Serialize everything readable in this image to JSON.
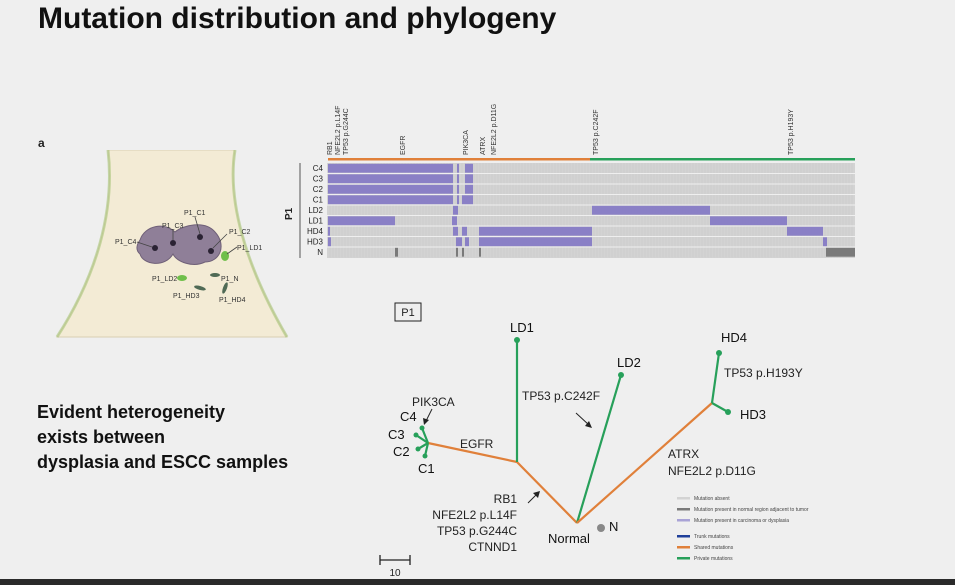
{
  "title": "Mutation distribution and phylogeny",
  "panel_label": "a",
  "bullet_lines": [
    "Evident heterogeneity",
    "exists between",
    "dysplasia and ESCC samples"
  ],
  "illustration": {
    "sample_labels": [
      "P1_C1",
      "P1_C3",
      "P1_C2",
      "P1_C4",
      "P1_LD1",
      "P1_N",
      "P1_LD2",
      "P1_HD3",
      "P1_HD4"
    ]
  },
  "heatmap": {
    "patient_label": "P1",
    "rows": [
      "C4",
      "C3",
      "C2",
      "C1",
      "LD2",
      "LD1",
      "HD4",
      "HD3",
      "N"
    ],
    "gene_labels": [
      "RB1",
      "NFE2L2 p.L14F",
      "TP53 p.G244C",
      "EGFR",
      "PIK3CA",
      "ATRX",
      "NFE2L2 p.D11G",
      "TP53 p.C242F",
      "TP53 p.H193Y"
    ],
    "colors": {
      "absent": "#d3d3d3",
      "present": "#8a80c6",
      "normal": "#7a7a7a",
      "shared": "#e0803a",
      "private": "#27a05a"
    }
  },
  "tree": {
    "box_label": "P1",
    "nodes": {
      "ld1": "LD1",
      "ld2": "LD2",
      "hd4": "HD4",
      "hd3": "HD3",
      "c1": "C1",
      "c2": "C2",
      "c3": "C3",
      "c4": "C4",
      "normal": "Normal",
      "n": "N"
    },
    "annotations": {
      "pik3ca": "PIK3CA",
      "egfr": "EGFR",
      "tp53_c242f": "TP53 p.C242F",
      "tp53_h193y": "TP53 p.H193Y",
      "atrx": "ATRX",
      "nfe2l2_d11g": "NFE2L2 p.D11G",
      "trunk_lines": [
        "RB1",
        "NFE2L2 p.L14F",
        "TP53 p.G244C",
        "CTNND1"
      ]
    },
    "scale_label": "10"
  },
  "legend": {
    "items": [
      {
        "label": "Mutation absent",
        "color": "#d3d3d3"
      },
      {
        "label": "Mutation present in normal region adjacent to tumor",
        "color": "#7a7a7a"
      },
      {
        "label": "Mutation present in carcinoma or dysplasia",
        "color": "#a9a3d6"
      },
      {
        "label": "Trunk mutations",
        "color": "#1f3f9a"
      },
      {
        "label": "Shared mutations",
        "color": "#e0803a"
      },
      {
        "label": "Private mutations",
        "color": "#27a05a"
      }
    ]
  }
}
